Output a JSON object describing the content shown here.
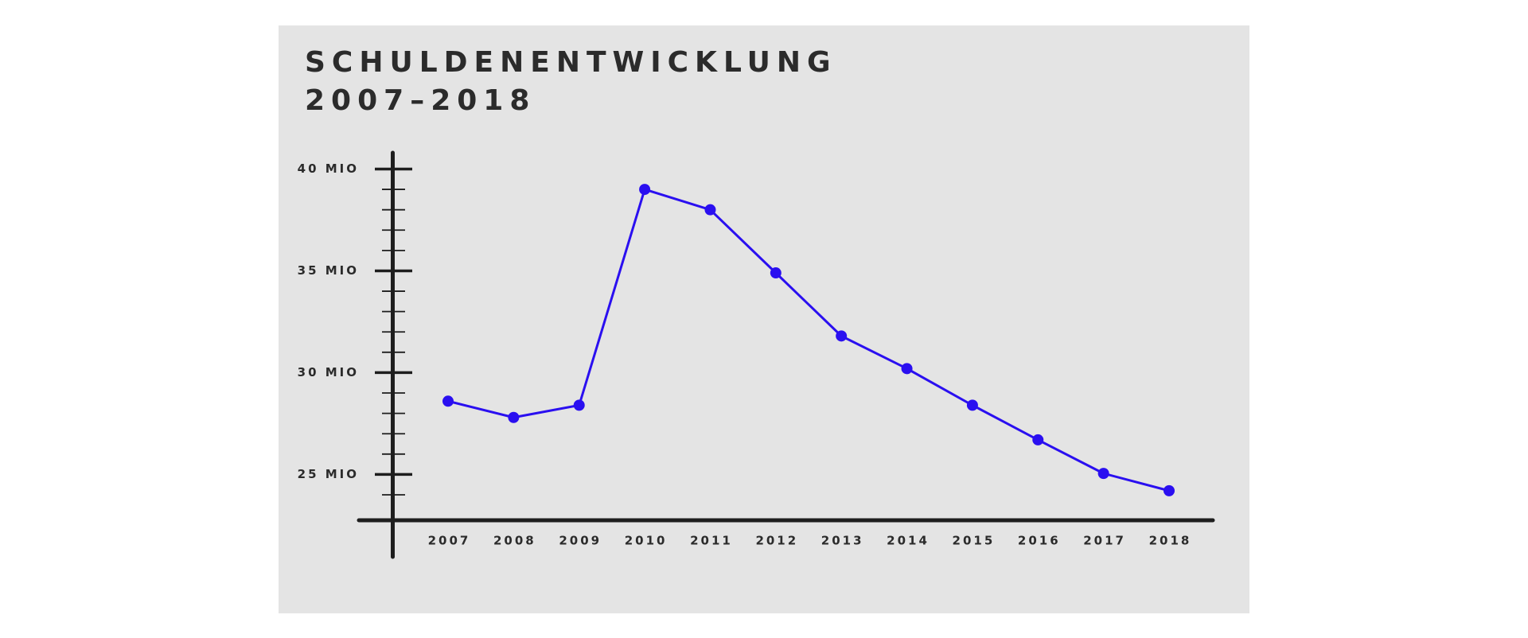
{
  "chart_data": {
    "type": "line",
    "title": "SCHULDENENTWICKLUNG",
    "subtitle": "2007–2018",
    "categories": [
      "2007",
      "2008",
      "2009",
      "2010",
      "2011",
      "2012",
      "2013",
      "2014",
      "2015",
      "2016",
      "2017",
      "2018"
    ],
    "series": [
      {
        "color": "#2a0ff0",
        "values": [
          28.6,
          27.8,
          28.4,
          39.0,
          38.0,
          34.9,
          31.8,
          30.2,
          28.4,
          26.7,
          25.05,
          24.2
        ]
      }
    ],
    "ylim": [
      22.75,
      40.8
    ],
    "yticks": [
      {
        "value": 25,
        "label": "25 MIO"
      },
      {
        "value": 30,
        "label": "30 MIO"
      },
      {
        "value": 35,
        "label": "35 MIO"
      },
      {
        "value": 40,
        "label": "40 MIO"
      }
    ],
    "minor_yticks": [
      24,
      26,
      27,
      28,
      29,
      31,
      32,
      33,
      34,
      36,
      37,
      38,
      39
    ]
  }
}
